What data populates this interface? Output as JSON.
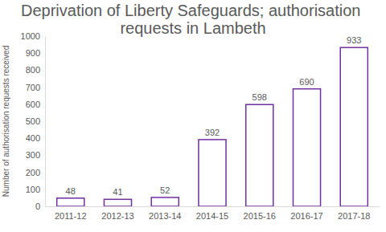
{
  "chart_data": {
    "type": "bar",
    "title": "Deprivation of Liberty Safeguards; authorisation requests in Lambeth",
    "y_label": "Number of authorisation requests received",
    "categories": [
      "2011-12",
      "2012-13",
      "2013-14",
      "2014-15",
      "2015-16",
      "2016-17",
      "2017-18"
    ],
    "values": [
      48,
      41,
      52,
      392,
      598,
      690,
      933
    ],
    "color": "#7030a0",
    "ylim": [
      0,
      1000
    ],
    "yticks": [
      0,
      100,
      200,
      300,
      400,
      500,
      600,
      700,
      800,
      900,
      1000
    ],
    "grid": false,
    "data_labels": true
  }
}
